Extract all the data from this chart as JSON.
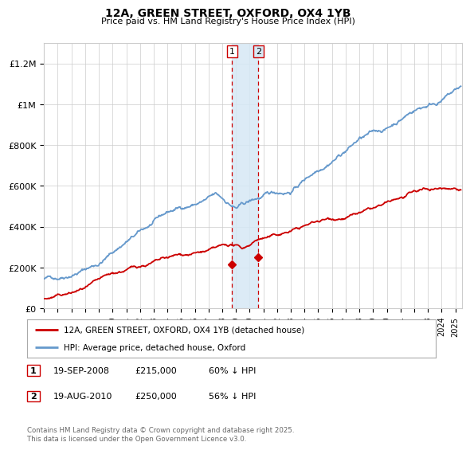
{
  "title": "12A, GREEN STREET, OXFORD, OX4 1YB",
  "subtitle": "Price paid vs. HM Land Registry's House Price Index (HPI)",
  "ylabel_ticks": [
    "£0",
    "£200K",
    "£400K",
    "£600K",
    "£800K",
    "£1M",
    "£1.2M"
  ],
  "ytick_vals": [
    0,
    200000,
    400000,
    600000,
    800000,
    1000000,
    1200000
  ],
  "ylim": [
    0,
    1300000
  ],
  "xlim_start": 1995.0,
  "xlim_end": 2025.5,
  "hpi_color": "#6699cc",
  "price_color": "#cc0000",
  "background_color": "#ffffff",
  "grid_color": "#cccccc",
  "shade_color": "#d6e8f5",
  "vline_color": "#cc0000",
  "marker1_date": 2008.72,
  "marker2_date": 2010.63,
  "marker1_price": 215000,
  "marker2_price": 250000,
  "legend_label_price": "12A, GREEN STREET, OXFORD, OX4 1YB (detached house)",
  "legend_label_hpi": "HPI: Average price, detached house, Oxford",
  "table_row1": [
    "1",
    "19-SEP-2008",
    "£215,000",
    "60% ↓ HPI"
  ],
  "table_row2": [
    "2",
    "19-AUG-2010",
    "£250,000",
    "56% ↓ HPI"
  ],
  "footnote": "Contains HM Land Registry data © Crown copyright and database right 2025.\nThis data is licensed under the Open Government Licence v3.0.",
  "xtick_years": [
    1995,
    1996,
    1997,
    1998,
    1999,
    2000,
    2001,
    2002,
    2003,
    2004,
    2005,
    2006,
    2007,
    2008,
    2009,
    2010,
    2011,
    2012,
    2013,
    2014,
    2015,
    2016,
    2017,
    2018,
    2019,
    2020,
    2021,
    2022,
    2023,
    2024,
    2025
  ]
}
